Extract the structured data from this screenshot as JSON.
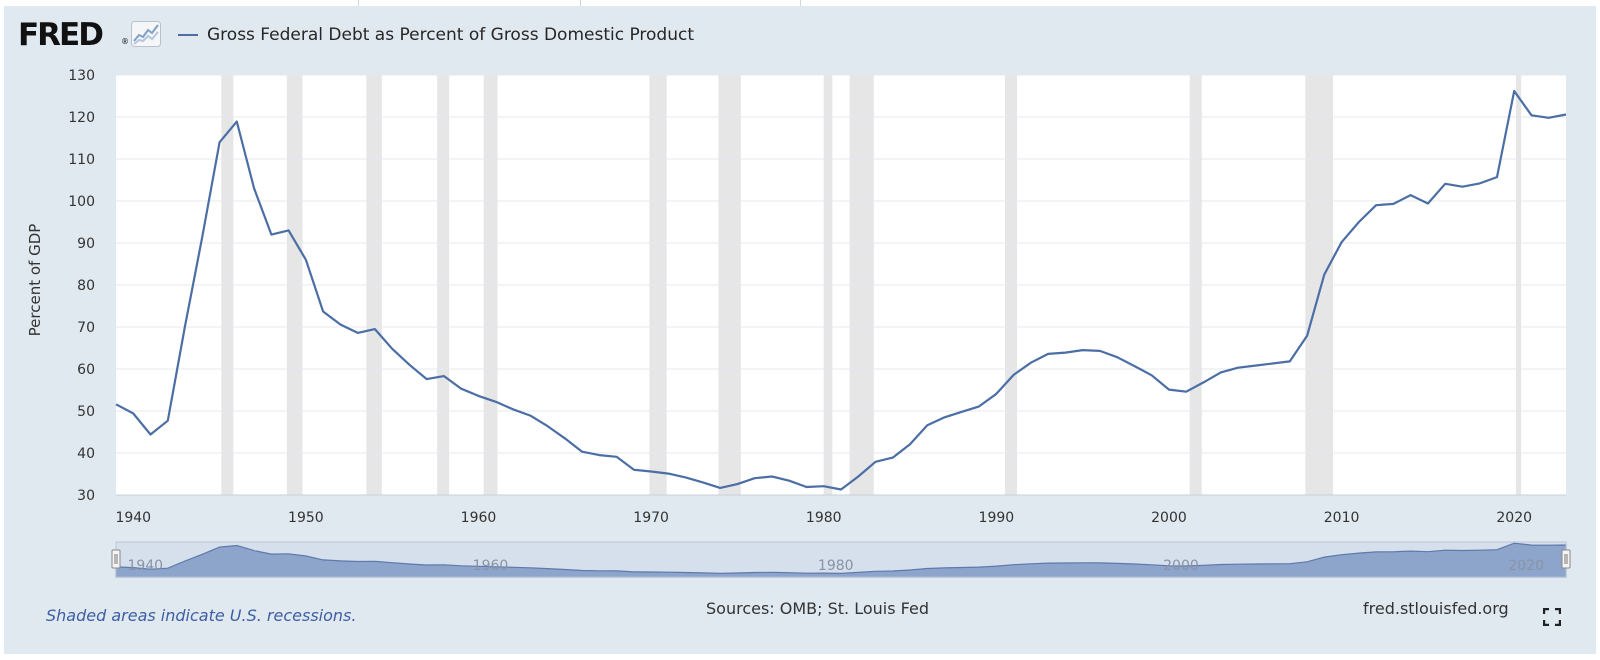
{
  "header": {
    "logo_text": "FRED",
    "logo_mark": "®",
    "logo_icon": "line-chart-icon"
  },
  "legend": {
    "series_label": "Gross Federal Debt as Percent of Gross Domestic Product"
  },
  "footer": {
    "note": "Shaded areas indicate U.S. recessions.",
    "sources": "Sources: OMB; St. Louis Fed",
    "site": "fred.stlouisfed.org",
    "expand_icon": "fullscreen-icon"
  },
  "colors": {
    "line": "#4b6ea5",
    "plot_bg": "#ffffff",
    "frame_bg": "#e1e9f0",
    "recession": "#e6e6e6",
    "navigator_fill": "#c3cfe4",
    "navigator_line": "#5d79ad"
  },
  "chart_data": {
    "type": "line",
    "title": "",
    "xlabel": "",
    "ylabel": "Percent of GDP",
    "xlim": [
      1939,
      2023
    ],
    "ylim": [
      30,
      130
    ],
    "yticks": [
      30,
      40,
      50,
      60,
      70,
      80,
      90,
      100,
      110,
      120,
      130
    ],
    "xticks": [
      1940,
      1950,
      1960,
      1970,
      1980,
      1990,
      2000,
      2010,
      2020
    ],
    "grid": true,
    "legend_position": "top",
    "recessions": [
      [
        1945.1,
        1945.8
      ],
      [
        1948.9,
        1949.8
      ],
      [
        1953.5,
        1954.4
      ],
      [
        1957.6,
        1958.3
      ],
      [
        1960.3,
        1961.1
      ],
      [
        1969.9,
        1970.9
      ],
      [
        1973.9,
        1975.2
      ],
      [
        1980.0,
        1980.5
      ],
      [
        1981.5,
        1982.9
      ],
      [
        1990.5,
        1991.2
      ],
      [
        2001.2,
        2001.9
      ],
      [
        2007.9,
        2009.5
      ],
      [
        2020.1,
        2020.4
      ]
    ],
    "series": [
      {
        "name": "Gross Federal Debt as Percent of Gross Domestic Product",
        "x": [
          1939,
          1940,
          1941,
          1942,
          1943,
          1944,
          1945,
          1946,
          1947,
          1948,
          1949,
          1950,
          1951,
          1952,
          1953,
          1954,
          1955,
          1956,
          1957,
          1958,
          1959,
          1960,
          1961,
          1962,
          1963,
          1964,
          1965,
          1966,
          1967,
          1968,
          1969,
          1970,
          1971,
          1972,
          1973,
          1974,
          1975,
          1976,
          1977,
          1978,
          1979,
          1980,
          1981,
          1982,
          1983,
          1984,
          1985,
          1986,
          1987,
          1988,
          1989,
          1990,
          1991,
          1992,
          1993,
          1994,
          1995,
          1996,
          1997,
          1998,
          1999,
          2000,
          2001,
          2002,
          2003,
          2004,
          2005,
          2006,
          2007,
          2008,
          2009,
          2010,
          2011,
          2012,
          2013,
          2014,
          2015,
          2016,
          2017,
          2018,
          2019,
          2020,
          2021,
          2022,
          2023
        ],
        "values": [
          51.6,
          49.4,
          44.4,
          47.7,
          70.2,
          91.5,
          114.0,
          118.9,
          103.0,
          92.0,
          93.0,
          86.0,
          73.7,
          70.6,
          68.6,
          69.5,
          64.8,
          61.0,
          57.6,
          58.3,
          55.3,
          53.6,
          52.2,
          50.4,
          48.9,
          46.4,
          43.5,
          40.3,
          39.5,
          39.1,
          36.0,
          35.6,
          35.1,
          34.2,
          33.0,
          31.7,
          32.6,
          34.0,
          34.4,
          33.4,
          31.9,
          32.1,
          31.3,
          34.4,
          37.9,
          38.9,
          42.1,
          46.6,
          48.5,
          49.8,
          51.1,
          54.1,
          58.6,
          61.5,
          63.6,
          63.9,
          64.5,
          64.3,
          62.8,
          60.7,
          58.5,
          55.1,
          54.6,
          56.8,
          59.2,
          60.3,
          60.8,
          61.3,
          61.8,
          67.9,
          82.5,
          90.2,
          95.0,
          99.0,
          99.3,
          101.4,
          99.4,
          104.1,
          103.4,
          104.2,
          105.7,
          126.2,
          120.4,
          119.8,
          120.6
        ]
      }
    ],
    "navigator": {
      "tick_labels": [
        "1940",
        "1960",
        "1980",
        "2000",
        "2020"
      ],
      "x": [
        1940,
        1960,
        1980,
        2000,
        2020
      ]
    }
  }
}
